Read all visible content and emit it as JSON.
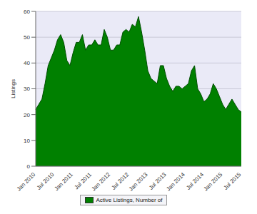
{
  "chart_data": {
    "type": "area",
    "y_label": "Listings",
    "categories": [
      "Jan 2010",
      null,
      null,
      null,
      null,
      null,
      "Jul 2010",
      null,
      null,
      null,
      null,
      null,
      "Jan 2011",
      null,
      null,
      null,
      null,
      null,
      "Jul 2011",
      null,
      null,
      null,
      null,
      null,
      "Jan 2012",
      null,
      null,
      null,
      null,
      null,
      "Jul 2012",
      null,
      null,
      null,
      null,
      null,
      "Jan 2013",
      null,
      null,
      null,
      null,
      null,
      "Jul 2013",
      null,
      null,
      null,
      null,
      null,
      "Jan 2014",
      null,
      null,
      null,
      null,
      null,
      "Jul 2014",
      null,
      null,
      null,
      null,
      null,
      "Jan 2015",
      null,
      null,
      null,
      null,
      null,
      "Jul 2015"
    ],
    "series": [
      {
        "name": "Active Listings, Number of",
        "color": "#008000",
        "values": [
          22,
          24,
          26,
          32,
          39,
          42,
          45,
          49,
          51,
          48,
          41,
          39,
          44,
          48,
          48,
          51,
          45,
          47,
          47,
          49,
          47,
          47,
          53,
          50,
          45,
          45,
          47,
          47,
          52,
          53,
          52,
          55,
          54,
          58,
          52,
          45,
          37,
          34,
          33,
          32,
          39,
          39,
          34,
          31,
          29,
          31,
          31,
          30,
          31,
          32,
          37,
          39,
          30,
          28,
          25,
          26,
          28,
          32,
          30,
          27,
          24,
          22,
          24,
          26,
          24,
          22,
          21
        ]
      }
    ],
    "ylim": [
      0,
      60
    ],
    "yticks": [
      0,
      10,
      20,
      30,
      40,
      50,
      60
    ],
    "grid": true,
    "legend": "bottom"
  }
}
